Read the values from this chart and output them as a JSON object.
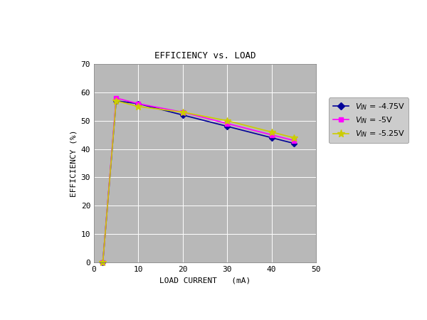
{
  "title": "EFFICIENCY vs. LOAD",
  "xlabel": "LOAD CURRENT   (mA)",
  "ylabel": "EFFICIENCY (%)",
  "xlim": [
    0,
    50
  ],
  "ylim": [
    0,
    70
  ],
  "xticks": [
    0,
    10,
    20,
    30,
    40,
    50
  ],
  "yticks": [
    0,
    10,
    20,
    30,
    40,
    50,
    60,
    70
  ],
  "plot_bgcolor": "#b8b8b8",
  "fig_bgcolor": "#ffffff",
  "series": [
    {
      "label_voltage": "-4.75V",
      "x": [
        2,
        5,
        10,
        20,
        30,
        40,
        45
      ],
      "y": [
        0,
        57,
        56,
        52,
        48,
        44,
        42
      ],
      "color": "#000099",
      "marker": "D",
      "markersize": 4,
      "linewidth": 1.2
    },
    {
      "label_voltage": "-5V",
      "x": [
        2,
        5,
        10,
        20,
        30,
        40,
        45
      ],
      "y": [
        0,
        58,
        56,
        53,
        49,
        45,
        43
      ],
      "color": "#ff00ff",
      "marker": "s",
      "markersize": 4,
      "linewidth": 1.2
    },
    {
      "label_voltage": "-5.25V",
      "x": [
        2,
        5,
        10,
        20,
        30,
        40,
        45
      ],
      "y": [
        0,
        57,
        55,
        53,
        50,
        46,
        44
      ],
      "color": "#cccc00",
      "marker": "*",
      "markersize": 7,
      "linewidth": 1.2
    }
  ],
  "legend_loc": "upper right",
  "title_fontsize": 9,
  "axis_label_fontsize": 8,
  "tick_fontsize": 8,
  "legend_fontsize": 8
}
